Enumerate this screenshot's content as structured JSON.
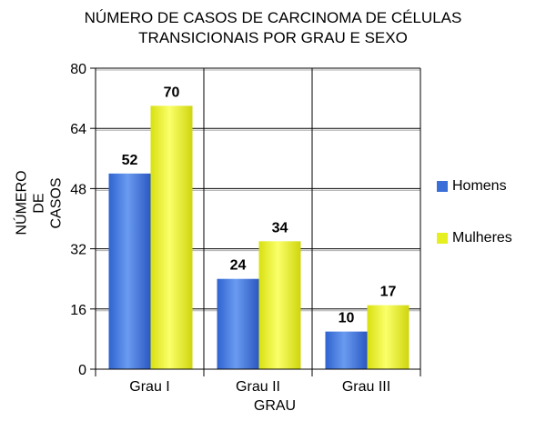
{
  "chart_data": {
    "type": "bar",
    "title_lines": [
      "NÚMERO DE CASOS DE CARCINOMA DE CÉLULAS",
      "TRANSICIONAIS POR GRAU E SEXO"
    ],
    "ylabel_lines": [
      "NÚMERO",
      "DE",
      "CASOS"
    ],
    "xlabel": "GRAU",
    "categories": [
      "Grau I",
      "Grau II",
      "Grau III"
    ],
    "series": [
      {
        "name": "Homens",
        "values": [
          52,
          24,
          10
        ],
        "color": "#3a6fd8"
      },
      {
        "name": "Mulheres",
        "values": [
          70,
          34,
          17
        ],
        "color": "#e6f020"
      }
    ],
    "ylim": [
      0,
      80
    ],
    "yticks": [
      0,
      16,
      32,
      48,
      64,
      80
    ],
    "grid": true,
    "legend_position": "right"
  }
}
